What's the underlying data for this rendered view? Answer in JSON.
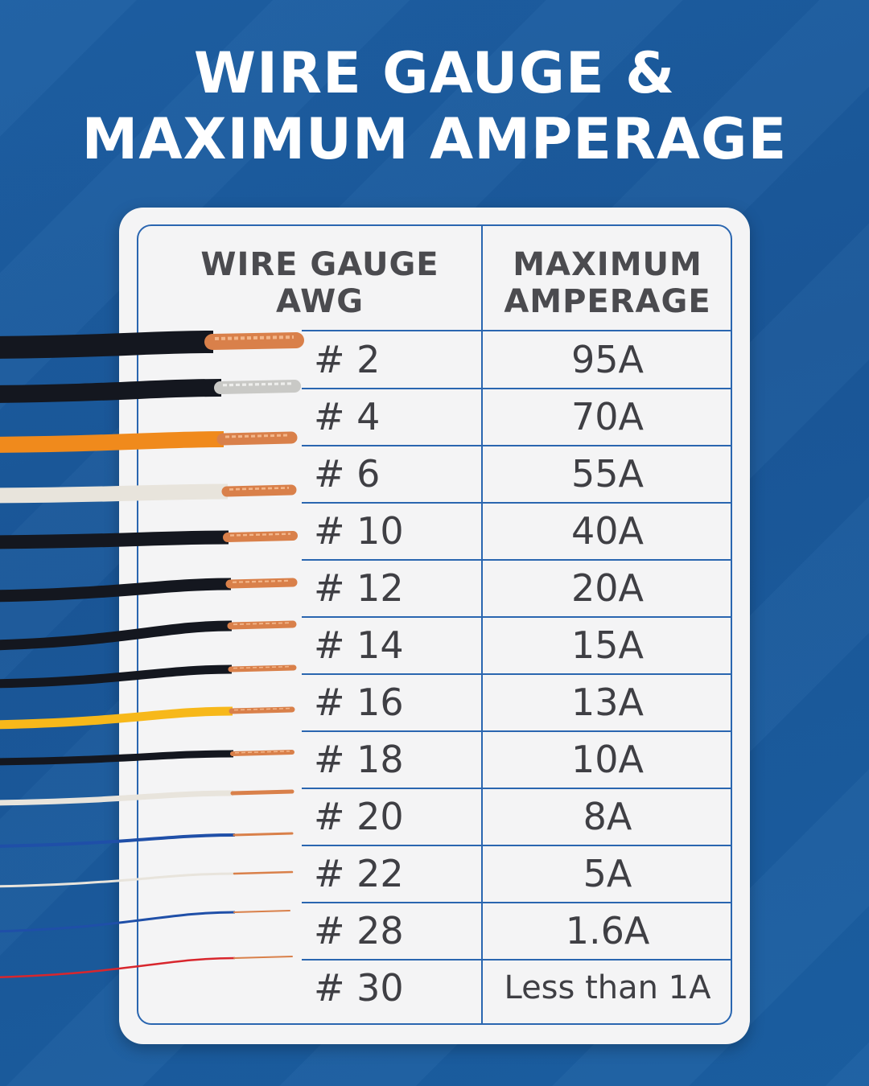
{
  "title": {
    "line1": "WIRE GAUGE &",
    "line2": "MAXIMUM AMPERAGE"
  },
  "table": {
    "headers": {
      "gauge": {
        "line1": "WIRE GAUGE",
        "line2": "AWG"
      },
      "amperage": {
        "line1": "MAXIMUM",
        "line2": "AMPERAGE"
      }
    },
    "rows": [
      {
        "gauge": "# 2",
        "amperage": "95A"
      },
      {
        "gauge": "# 4",
        "amperage": "70A"
      },
      {
        "gauge": "# 6",
        "amperage": "55A"
      },
      {
        "gauge": "# 10",
        "amperage": "40A"
      },
      {
        "gauge": "# 12",
        "amperage": "20A"
      },
      {
        "gauge": "# 14",
        "amperage": "15A"
      },
      {
        "gauge": "# 16",
        "amperage": "13A"
      },
      {
        "gauge": "# 18",
        "amperage": "10A"
      },
      {
        "gauge": "# 20",
        "amperage": "8A"
      },
      {
        "gauge": "# 22",
        "amperage": "5A"
      },
      {
        "gauge": "# 28",
        "amperage": "1.6A"
      },
      {
        "gauge": "# 30",
        "amperage": "Less than 1A"
      }
    ]
  },
  "wires": [
    {
      "insulation": "black",
      "conductor": "copper"
    },
    {
      "insulation": "black",
      "conductor": "tinned"
    },
    {
      "insulation": "orange",
      "conductor": "copper"
    },
    {
      "insulation": "white",
      "conductor": "copper"
    },
    {
      "insulation": "black",
      "conductor": "copper"
    },
    {
      "insulation": "black",
      "conductor": "copper"
    },
    {
      "insulation": "black",
      "conductor": "copper"
    },
    {
      "insulation": "black",
      "conductor": "copper"
    },
    {
      "insulation": "yellow",
      "conductor": "copper"
    },
    {
      "insulation": "black",
      "conductor": "copper"
    },
    {
      "insulation": "white",
      "conductor": "copper"
    },
    {
      "insulation": "blue",
      "conductor": "copper"
    },
    {
      "insulation": "white",
      "conductor": "copper"
    },
    {
      "insulation": "blue",
      "conductor": "copper"
    },
    {
      "insulation": "red",
      "conductor": "copper"
    }
  ],
  "colors": {
    "background": "#1a5799",
    "card": "#f4f4f5",
    "grid_lines": "#2a66b0",
    "text": "#3f3f44",
    "title": "#ffffff"
  }
}
